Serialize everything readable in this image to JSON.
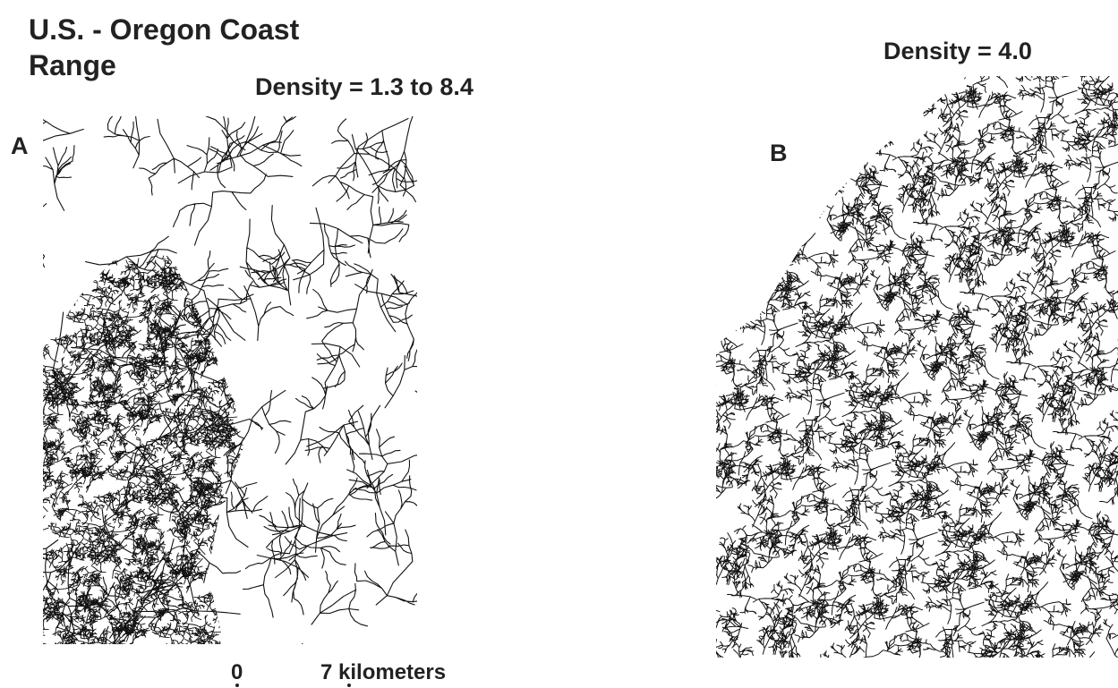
{
  "title": [
    "U.S. - Oregon Coast",
    "Range"
  ],
  "panels": [
    {
      "label": "A",
      "density": "Density = 1.3 to 8.4"
    },
    {
      "label": "B",
      "density": "Density = 4.0"
    }
  ],
  "scale_bar": {
    "start": "0",
    "end": "7 kilometers"
  }
}
